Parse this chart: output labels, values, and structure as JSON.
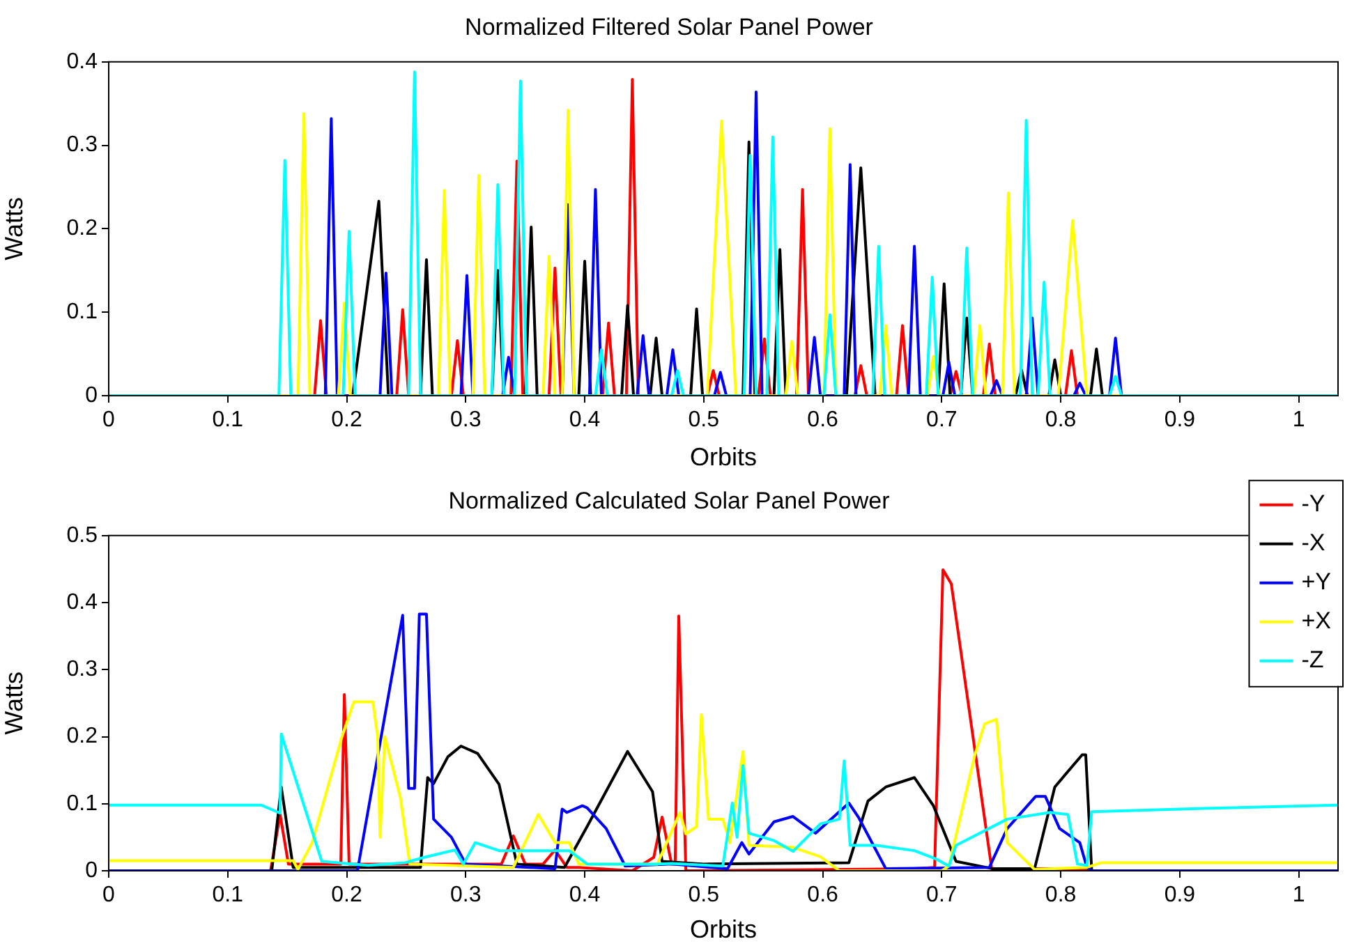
{
  "chart_data": [
    {
      "type": "line",
      "title": "Normalized Filtered Solar Panel Power",
      "xlabel": "Orbits",
      "ylabel": "Watts",
      "xlim": [
        0,
        1.033
      ],
      "xticks": [
        0,
        0.1,
        0.2,
        0.3,
        0.4,
        0.5,
        0.6,
        0.7,
        0.8,
        0.9,
        1
      ],
      "ylim": [
        0,
        0.4
      ],
      "yticks": [
        0,
        0.1,
        0.2,
        0.3,
        0.4
      ],
      "grid": false,
      "marker": "none",
      "line_style": "solid",
      "series": [
        {
          "color": "#ff0000",
          "x": [
            0,
            0.173,
            0.178,
            0.183,
            0.242,
            0.247,
            0.252,
            0.288,
            0.293,
            0.298,
            0.338,
            0.343,
            0.348,
            0.37,
            0.375,
            0.38,
            0.415,
            0.42,
            0.425,
            0.435,
            0.44,
            0.445,
            0.503,
            0.508,
            0.513,
            0.546,
            0.551,
            0.556,
            0.578,
            0.583,
            0.588,
            0.627,
            0.632,
            0.637,
            0.662,
            0.667,
            0.672,
            0.707,
            0.712,
            0.717,
            0.735,
            0.74,
            0.745,
            0.804,
            0.809,
            0.814,
            1.033
          ],
          "values": [
            0,
            0,
            0.09,
            0,
            0,
            0.103,
            0,
            0,
            0.066,
            0,
            0,
            0.281,
            0,
            0,
            0.153,
            0,
            0,
            0.087,
            0,
            0,
            0.379,
            0,
            0,
            0.03,
            0,
            0,
            0.068,
            0,
            0,
            0.247,
            0,
            0,
            0.036,
            0,
            0,
            0.084,
            0,
            0,
            0.029,
            0,
            0,
            0.062,
            0,
            0,
            0.054,
            0,
            0
          ]
        },
        {
          "color": "#000000",
          "x": [
            0,
            0.205,
            0.227,
            0.235,
            0.262,
            0.267,
            0.272,
            0.322,
            0.327,
            0.332,
            0.35,
            0.355,
            0.36,
            0.395,
            0.4,
            0.405,
            0.431,
            0.436,
            0.441,
            0.455,
            0.46,
            0.465,
            0.489,
            0.494,
            0.499,
            0.533,
            0.538,
            0.543,
            0.559,
            0.564,
            0.569,
            0.62,
            0.632,
            0.644,
            0.697,
            0.702,
            0.707,
            0.716,
            0.721,
            0.726,
            0.762,
            0.767,
            0.772,
            0.79,
            0.795,
            0.8,
            0.825,
            0.83,
            0.835,
            1.033
          ],
          "values": [
            0,
            0,
            0.233,
            0,
            0,
            0.163,
            0,
            0,
            0.15,
            0,
            0,
            0.202,
            0,
            0,
            0.161,
            0,
            0,
            0.108,
            0,
            0,
            0.069,
            0,
            0,
            0.104,
            0,
            0,
            0.304,
            0,
            0,
            0.175,
            0,
            0,
            0.273,
            0,
            0,
            0.134,
            0,
            0,
            0.093,
            0,
            0,
            0.031,
            0,
            0,
            0.043,
            0,
            0,
            0.056,
            0,
            0
          ]
        },
        {
          "color": "#0000ff",
          "x": [
            0,
            0.182,
            0.187,
            0.192,
            0.228,
            0.233,
            0.238,
            0.296,
            0.301,
            0.306,
            0.331,
            0.336,
            0.341,
            0.381,
            0.386,
            0.391,
            0.404,
            0.409,
            0.414,
            0.444,
            0.449,
            0.454,
            0.469,
            0.474,
            0.479,
            0.509,
            0.514,
            0.519,
            0.539,
            0.544,
            0.549,
            0.588,
            0.593,
            0.598,
            0.618,
            0.623,
            0.628,
            0.672,
            0.677,
            0.682,
            0.701,
            0.706,
            0.711,
            0.741,
            0.746,
            0.751,
            0.771,
            0.776,
            0.781,
            0.811,
            0.816,
            0.821,
            0.841,
            0.846,
            0.851,
            1.033
          ],
          "values": [
            0,
            0,
            0.332,
            0,
            0,
            0.147,
            0,
            0,
            0.144,
            0,
            0,
            0.046,
            0,
            0,
            0.229,
            0,
            0,
            0.247,
            0,
            0,
            0.072,
            0,
            0,
            0.055,
            0,
            0,
            0.028,
            0,
            0,
            0.364,
            0,
            0,
            0.07,
            0,
            0,
            0.277,
            0,
            0,
            0.179,
            0,
            0,
            0.04,
            0,
            0,
            0.018,
            0,
            0,
            0.093,
            0,
            0,
            0.015,
            0,
            0,
            0.069,
            0,
            0
          ]
        },
        {
          "color": "#ffff00",
          "x": [
            0,
            0.159,
            0.164,
            0.169,
            0.193,
            0.198,
            0.203,
            0.277,
            0.282,
            0.287,
            0.306,
            0.311,
            0.316,
            0.365,
            0.37,
            0.375,
            0.381,
            0.386,
            0.391,
            0.503,
            0.515,
            0.527,
            0.569,
            0.574,
            0.579,
            0.601,
            0.606,
            0.611,
            0.648,
            0.653,
            0.658,
            0.688,
            0.693,
            0.698,
            0.727,
            0.732,
            0.737,
            0.751,
            0.756,
            0.761,
            0.798,
            0.81,
            0.822,
            1.033
          ],
          "values": [
            0,
            0,
            0.338,
            0,
            0,
            0.111,
            0,
            0,
            0.246,
            0,
            0,
            0.264,
            0,
            0,
            0.167,
            0,
            0,
            0.342,
            0,
            0,
            0.329,
            0,
            0,
            0.065,
            0,
            0,
            0.32,
            0,
            0,
            0.084,
            0,
            0,
            0.047,
            0,
            0,
            0.084,
            0,
            0,
            0.243,
            0,
            0,
            0.21,
            0,
            0
          ]
        },
        {
          "color": "#00ffff",
          "x": [
            0,
            0.143,
            0.148,
            0.153,
            0.197,
            0.202,
            0.207,
            0.252,
            0.257,
            0.262,
            0.322,
            0.327,
            0.332,
            0.341,
            0.346,
            0.351,
            0.409,
            0.414,
            0.419,
            0.473,
            0.478,
            0.483,
            0.534,
            0.539,
            0.544,
            0.553,
            0.558,
            0.563,
            0.601,
            0.606,
            0.611,
            0.642,
            0.647,
            0.652,
            0.687,
            0.692,
            0.697,
            0.716,
            0.721,
            0.726,
            0.766,
            0.771,
            0.776,
            0.781,
            0.786,
            0.791,
            0.841,
            0.846,
            0.851,
            1.033
          ],
          "values": [
            0,
            0,
            0.282,
            0,
            0,
            0.197,
            0,
            0,
            0.388,
            0,
            0,
            0.253,
            0,
            0,
            0.377,
            0,
            0,
            0.055,
            0,
            0,
            0.03,
            0,
            0,
            0.288,
            0,
            0,
            0.31,
            0,
            0,
            0.097,
            0,
            0,
            0.179,
            0,
            0,
            0.142,
            0,
            0,
            0.177,
            0,
            0,
            0.33,
            0,
            0,
            0.136,
            0,
            0,
            0.023,
            0,
            0
          ]
        }
      ]
    },
    {
      "type": "line",
      "title": "Normalized Calculated Solar Panel Power",
      "xlabel": "Orbits",
      "ylabel": "Watts",
      "xlim": [
        0,
        1.033
      ],
      "xticks": [
        0,
        0.1,
        0.2,
        0.3,
        0.4,
        0.5,
        0.6,
        0.7,
        0.8,
        0.9,
        1
      ],
      "ylim": [
        0,
        0.5
      ],
      "yticks": [
        0,
        0.1,
        0.2,
        0.3,
        0.4,
        0.5
      ],
      "grid": false,
      "legend": "top right",
      "marker": "none",
      "line_style": "solid",
      "series": [
        {
          "name": "-Y",
          "color": "#ff0000",
          "x": [
            0,
            0.136,
            0.144,
            0.151,
            0.19,
            0.195,
            0.198,
            0.202,
            0.33,
            0.34,
            0.35,
            0.365,
            0.375,
            0.385,
            0.395,
            0.44,
            0.458,
            0.465,
            0.473,
            0.476,
            0.479,
            0.485,
            0.677,
            0.694,
            0.701,
            0.708,
            0.742,
            0.82,
            0.826,
            1.033
          ],
          "values": [
            0,
            0,
            0.084,
            0.01,
            0.01,
            0.01,
            0.263,
            0.01,
            0.01,
            0.052,
            0.01,
            0.01,
            0.031,
            0.005,
            0.005,
            0,
            0.02,
            0.08,
            0.01,
            0.01,
            0.38,
            0,
            0.003,
            0.005,
            0.449,
            0.428,
            0.003,
            0.003,
            0,
            0
          ]
        },
        {
          "name": "-X",
          "color": "#000000",
          "x": [
            0,
            0.137,
            0.145,
            0.155,
            0.262,
            0.268,
            0.273,
            0.285,
            0.296,
            0.31,
            0.328,
            0.343,
            0.383,
            0.402,
            0.436,
            0.457,
            0.465,
            0.5,
            0.622,
            0.638,
            0.653,
            0.677,
            0.693,
            0.712,
            0.743,
            0.778,
            0.795,
            0.818,
            0.821,
            0.826,
            1.033
          ],
          "values": [
            0,
            0,
            0.125,
            0.005,
            0.005,
            0.139,
            0.13,
            0.17,
            0.186,
            0.175,
            0.129,
            0.01,
            0.005,
            0.066,
            0.178,
            0.118,
            0.014,
            0.01,
            0.012,
            0.104,
            0.125,
            0.139,
            0.097,
            0.014,
            0.003,
            0.003,
            0.125,
            0.173,
            0.173,
            0,
            0
          ]
        },
        {
          "name": "+Y",
          "color": "#0000ff",
          "x": [
            0,
            0.209,
            0.247,
            0.252,
            0.257,
            0.261,
            0.267,
            0.273,
            0.288,
            0.3,
            0.375,
            0.381,
            0.385,
            0.398,
            0.402,
            0.418,
            0.434,
            0.473,
            0.52,
            0.532,
            0.538,
            0.559,
            0.575,
            0.594,
            0.622,
            0.63,
            0.653,
            0.74,
            0.755,
            0.779,
            0.787,
            0.799,
            0.816,
            0.822,
            0.826,
            1.033
          ],
          "values": [
            0,
            0,
            0.381,
            0.123,
            0.123,
            0.383,
            0.383,
            0.077,
            0.05,
            0.01,
            0.003,
            0.092,
            0.087,
            0.097,
            0.094,
            0.063,
            0.007,
            0.01,
            0.003,
            0.042,
            0.025,
            0.073,
            0.081,
            0.056,
            0.101,
            0.08,
            0.003,
            0.005,
            0.063,
            0.111,
            0.111,
            0.063,
            0.042,
            0.005,
            0,
            0
          ]
        },
        {
          "name": "+X",
          "color": "#ffff00",
          "x": [
            0,
            0.13,
            0.155,
            0.159,
            0.171,
            0.183,
            0.196,
            0.206,
            0.222,
            0.226,
            0.228,
            0.232,
            0.245,
            0.253,
            0.34,
            0.361,
            0.375,
            0.387,
            0.395,
            0.461,
            0.48,
            0.485,
            0.494,
            0.498,
            0.504,
            0.516,
            0.522,
            0.533,
            0.538,
            0.575,
            0.598,
            0.614,
            0.7,
            0.706,
            0.728,
            0.736,
            0.746,
            0.755,
            0.778,
            0.822,
            0.834,
            1.033
          ],
          "values": [
            0.015,
            0.015,
            0.015,
            0.002,
            0.042,
            0.118,
            0.2,
            0.252,
            0.252,
            0.2,
            0.05,
            0.2,
            0.11,
            0.01,
            0.005,
            0.084,
            0.042,
            0.042,
            0.01,
            0.01,
            0.087,
            0.055,
            0.066,
            0.233,
            0.077,
            0.077,
            0.042,
            0.178,
            0.038,
            0.035,
            0.021,
            0,
            0,
            0.007,
            0.174,
            0.219,
            0.226,
            0.042,
            0.002,
            0.005,
            0.012,
            0.012
          ]
        },
        {
          "name": "-Z",
          "color": "#00ffff",
          "x": [
            0,
            0.128,
            0.144,
            0.145,
            0.179,
            0.218,
            0.249,
            0.265,
            0.291,
            0.298,
            0.308,
            0.328,
            0.339,
            0.387,
            0.402,
            0.461,
            0.473,
            0.516,
            0.524,
            0.528,
            0.533,
            0.538,
            0.559,
            0.575,
            0.598,
            0.614,
            0.618,
            0.623,
            0.645,
            0.677,
            0.696,
            0.706,
            0.712,
            0.755,
            0.791,
            0.806,
            0.814,
            0.822,
            0.826,
            0.92,
            1.033
          ],
          "values": [
            0.098,
            0.098,
            0.086,
            0.204,
            0.014,
            0.008,
            0.012,
            0.02,
            0.031,
            0.01,
            0.042,
            0.03,
            0.03,
            0.03,
            0.01,
            0.01,
            0.011,
            0.007,
            0.101,
            0.05,
            0.157,
            0.056,
            0.045,
            0.029,
            0.07,
            0.077,
            0.164,
            0.038,
            0.038,
            0.03,
            0.017,
            0.007,
            0.038,
            0.077,
            0.087,
            0.084,
            0.01,
            0.008,
            0.088,
            0.093,
            0.098
          ]
        }
      ]
    }
  ]
}
